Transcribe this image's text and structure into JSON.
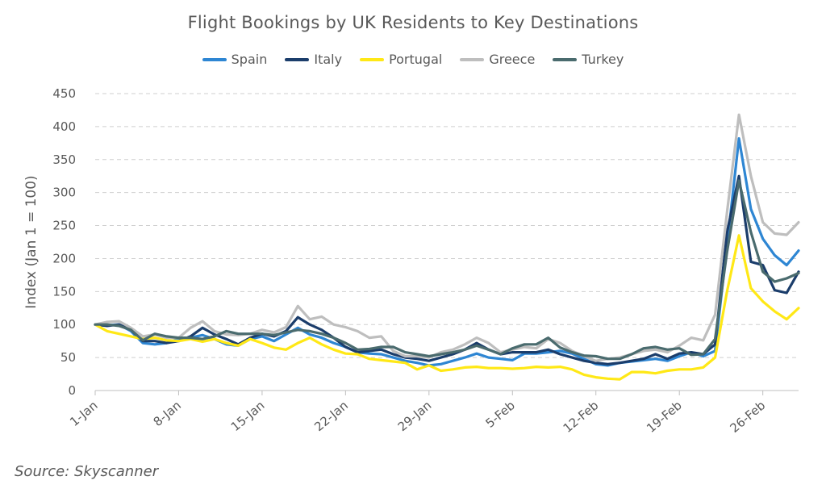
{
  "chart_data": {
    "type": "line",
    "title": "Flight Bookings by UK Residents to Key Destinations",
    "ylabel": "Index (Jan 1 = 100)",
    "xlabel": "",
    "ylim": [
      0,
      450
    ],
    "yticks": [
      0,
      50,
      100,
      150,
      200,
      250,
      300,
      350,
      400,
      450
    ],
    "x_tick_labels": [
      "1-Jan",
      "8-Jan",
      "15-Jan",
      "22-Jan",
      "29-Jan",
      "5-Feb",
      "12-Feb",
      "19-Feb",
      "26-Feb"
    ],
    "x_tick_days": [
      1,
      8,
      15,
      22,
      29,
      36,
      43,
      50,
      57
    ],
    "x_days": [
      1,
      2,
      3,
      4,
      5,
      6,
      7,
      8,
      9,
      10,
      11,
      12,
      13,
      14,
      15,
      16,
      17,
      18,
      19,
      20,
      21,
      22,
      23,
      24,
      25,
      26,
      27,
      28,
      29,
      30,
      31,
      32,
      33,
      34,
      35,
      36,
      37,
      38,
      39,
      40,
      41,
      42,
      43,
      44,
      45,
      46,
      47,
      48,
      49,
      50,
      51,
      52,
      53,
      54,
      55,
      56,
      57,
      58,
      59,
      60
    ],
    "grid": "horizontal-dashed",
    "legend_position": "top",
    "series": [
      {
        "name": "Spain",
        "color": "#2E86D3",
        "values": [
          100,
          99,
          100,
          90,
          72,
          70,
          72,
          78,
          80,
          84,
          78,
          70,
          68,
          78,
          82,
          75,
          85,
          95,
          85,
          80,
          72,
          66,
          58,
          56,
          55,
          50,
          45,
          42,
          38,
          40,
          45,
          50,
          56,
          50,
          48,
          46,
          56,
          56,
          58,
          60,
          56,
          48,
          40,
          38,
          42,
          44,
          46,
          48,
          45,
          52,
          58,
          52,
          60,
          220,
          382,
          275,
          230,
          205,
          190,
          212
        ]
      },
      {
        "name": "Italy",
        "color": "#1B3D6B",
        "values": [
          100,
          98,
          100,
          92,
          75,
          75,
          72,
          75,
          82,
          95,
          85,
          78,
          70,
          80,
          86,
          82,
          90,
          111,
          100,
          92,
          80,
          66,
          58,
          60,
          62,
          55,
          50,
          48,
          45,
          50,
          55,
          62,
          72,
          62,
          55,
          58,
          58,
          58,
          62,
          55,
          50,
          45,
          42,
          40,
          42,
          45,
          48,
          55,
          48,
          56,
          58,
          55,
          70,
          240,
          325,
          195,
          190,
          152,
          148,
          180
        ]
      },
      {
        "name": "Portugal",
        "color": "#FFE816",
        "values": [
          100,
          90,
          86,
          82,
          78,
          80,
          76,
          75,
          78,
          74,
          78,
          72,
          68,
          78,
          72,
          65,
          62,
          72,
          80,
          70,
          62,
          56,
          55,
          48,
          46,
          44,
          42,
          32,
          38,
          30,
          32,
          35,
          36,
          34,
          34,
          33,
          34,
          36,
          35,
          36,
          32,
          24,
          20,
          18,
          17,
          28,
          28,
          26,
          30,
          32,
          32,
          35,
          50,
          150,
          235,
          155,
          135,
          120,
          108,
          125
        ]
      },
      {
        "name": "Greece",
        "color": "#BEBEBE",
        "values": [
          100,
          104,
          105,
          95,
          82,
          85,
          80,
          80,
          95,
          105,
          90,
          85,
          84,
          86,
          92,
          88,
          96,
          128,
          108,
          112,
          100,
          96,
          90,
          80,
          82,
          60,
          52,
          52,
          50,
          58,
          62,
          70,
          80,
          72,
          58,
          62,
          66,
          64,
          78,
          72,
          60,
          52,
          45,
          48,
          50,
          55,
          60,
          62,
          58,
          68,
          80,
          76,
          115,
          270,
          418,
          325,
          255,
          238,
          236,
          255
        ]
      },
      {
        "name": "Turkey",
        "color": "#4A6B6E",
        "values": [
          100,
          100,
          98,
          92,
          76,
          86,
          82,
          80,
          80,
          78,
          82,
          90,
          86,
          86,
          86,
          84,
          88,
          92,
          90,
          86,
          80,
          72,
          62,
          63,
          66,
          66,
          58,
          55,
          52,
          55,
          58,
          62,
          68,
          62,
          55,
          64,
          70,
          70,
          80,
          65,
          58,
          53,
          52,
          48,
          48,
          55,
          64,
          66,
          62,
          64,
          54,
          55,
          78,
          210,
          318,
          240,
          180,
          165,
          170,
          178
        ]
      }
    ],
    "source": "Source: Skyscanner"
  }
}
